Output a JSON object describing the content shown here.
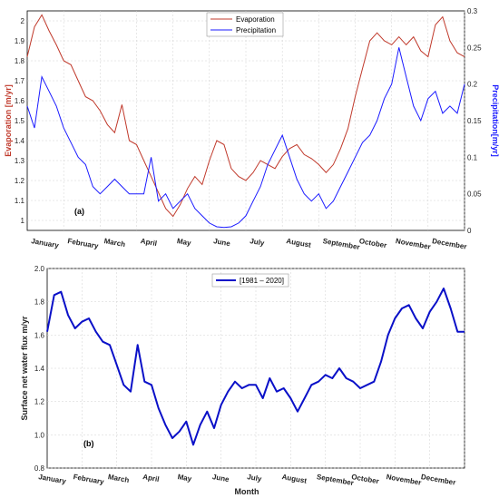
{
  "chart_data": [
    {
      "type": "line",
      "panel_label": "(a)",
      "months": [
        "January",
        "February",
        "March",
        "April",
        "May",
        "June",
        "July",
        "August",
        "September",
        "October",
        "November",
        "December"
      ],
      "y_left": {
        "label": "Evaporation [m/yr]",
        "ylim": [
          0.95,
          2.05
        ],
        "ticks": [
          "1",
          "1.1",
          "1.2",
          "1.3",
          "1.4",
          "1.5",
          "1.6",
          "1.7",
          "1.8",
          "1.9",
          "2"
        ],
        "color": "#c0392b"
      },
      "y_right": {
        "label": "Precipitation[m/yr]",
        "ylim": [
          0,
          0.3
        ],
        "ticks": [
          "0",
          "0.05",
          "0.1",
          "0.15",
          "0.2",
          "0.25",
          "0.3"
        ],
        "color": "#1a1aff"
      },
      "legend_position": "top-center",
      "grid": true,
      "series": [
        {
          "name": "Evaporation",
          "axis": "left",
          "color": "#c0392b",
          "x": [
            0,
            0.2,
            0.4,
            0.6,
            0.8,
            1,
            1.2,
            1.4,
            1.6,
            1.8,
            2,
            2.2,
            2.4,
            2.6,
            2.8,
            3,
            3.2,
            3.4,
            3.6,
            3.8,
            4,
            4.2,
            4.4,
            4.6,
            4.8,
            5,
            5.2,
            5.4,
            5.6,
            5.8,
            6,
            6.2,
            6.4,
            6.6,
            6.8,
            7,
            7.2,
            7.4,
            7.6,
            7.8,
            8,
            8.2,
            8.4,
            8.6,
            8.8,
            9,
            9.2,
            9.4,
            9.6,
            9.8,
            10,
            10.2,
            10.4,
            10.6,
            10.8,
            11,
            11.2,
            11.4,
            11.6,
            11.8,
            12
          ],
          "y": [
            1.82,
            1.97,
            2.03,
            1.95,
            1.88,
            1.8,
            1.78,
            1.7,
            1.62,
            1.6,
            1.55,
            1.48,
            1.44,
            1.58,
            1.4,
            1.38,
            1.3,
            1.22,
            1.14,
            1.06,
            1.02,
            1.08,
            1.16,
            1.22,
            1.18,
            1.3,
            1.4,
            1.38,
            1.26,
            1.22,
            1.2,
            1.24,
            1.3,
            1.28,
            1.26,
            1.32,
            1.36,
            1.38,
            1.33,
            1.31,
            1.28,
            1.24,
            1.28,
            1.36,
            1.46,
            1.62,
            1.76,
            1.9,
            1.94,
            1.9,
            1.88,
            1.92,
            1.88,
            1.92,
            1.85,
            1.82,
            1.98,
            2.02,
            1.9,
            1.84,
            1.82
          ]
        },
        {
          "name": "Precipitation",
          "axis": "right",
          "color": "#1a1aff",
          "x": [
            0,
            0.2,
            0.4,
            0.6,
            0.8,
            1,
            1.2,
            1.4,
            1.6,
            1.8,
            2,
            2.2,
            2.4,
            2.6,
            2.8,
            3,
            3.2,
            3.4,
            3.6,
            3.8,
            4,
            4.2,
            4.4,
            4.6,
            4.8,
            5,
            5.2,
            5.4,
            5.6,
            5.8,
            6,
            6.2,
            6.4,
            6.6,
            6.8,
            7,
            7.2,
            7.4,
            7.6,
            7.8,
            8,
            8.2,
            8.4,
            8.6,
            8.8,
            9,
            9.2,
            9.4,
            9.6,
            9.8,
            10,
            10.2,
            10.4,
            10.6,
            10.8,
            11,
            11.2,
            11.4,
            11.6,
            11.8,
            12
          ],
          "y": [
            0.17,
            0.14,
            0.21,
            0.19,
            0.17,
            0.14,
            0.12,
            0.1,
            0.09,
            0.06,
            0.05,
            0.06,
            0.07,
            0.06,
            0.05,
            0.05,
            0.05,
            0.1,
            0.04,
            0.05,
            0.03,
            0.04,
            0.05,
            0.03,
            0.02,
            0.01,
            0.005,
            0.004,
            0.005,
            0.01,
            0.02,
            0.04,
            0.06,
            0.09,
            0.11,
            0.13,
            0.1,
            0.07,
            0.05,
            0.04,
            0.05,
            0.03,
            0.04,
            0.06,
            0.08,
            0.1,
            0.12,
            0.13,
            0.15,
            0.18,
            0.2,
            0.25,
            0.21,
            0.17,
            0.15,
            0.18,
            0.19,
            0.16,
            0.17,
            0.16,
            0.2
          ]
        }
      ]
    },
    {
      "type": "line",
      "panel_label": "(b)",
      "months": [
        "January",
        "February",
        "March",
        "April",
        "May",
        "June",
        "July",
        "August",
        "September",
        "October",
        "November",
        "December"
      ],
      "xlabel": "Month",
      "ylabel": "Surface net water flux m/yr",
      "ylim": [
        0.8,
        2.0
      ],
      "yticks": [
        "0.8",
        "1.0",
        "1.2",
        "1.4",
        "1.6",
        "1.8",
        "2.0"
      ],
      "legend_position": "top-center",
      "grid": true,
      "series": [
        {
          "name": "[1981 – 2020]",
          "color": "#0a10c8",
          "x": [
            0,
            0.2,
            0.4,
            0.6,
            0.8,
            1,
            1.2,
            1.4,
            1.6,
            1.8,
            2,
            2.2,
            2.4,
            2.6,
            2.8,
            3,
            3.2,
            3.4,
            3.6,
            3.8,
            4,
            4.2,
            4.4,
            4.6,
            4.8,
            5,
            5.2,
            5.4,
            5.6,
            5.8,
            6,
            6.2,
            6.4,
            6.6,
            6.8,
            7,
            7.2,
            7.4,
            7.6,
            7.8,
            8,
            8.2,
            8.4,
            8.6,
            8.8,
            9,
            9.2,
            9.4,
            9.6,
            9.8,
            10,
            10.2,
            10.4,
            10.6,
            10.8,
            11,
            11.2,
            11.4,
            11.6,
            11.8,
            12
          ],
          "y": [
            1.62,
            1.84,
            1.86,
            1.72,
            1.64,
            1.68,
            1.7,
            1.62,
            1.56,
            1.54,
            1.42,
            1.3,
            1.26,
            1.54,
            1.32,
            1.3,
            1.16,
            1.06,
            0.98,
            1.02,
            1.08,
            0.94,
            1.06,
            1.14,
            1.04,
            1.18,
            1.26,
            1.32,
            1.28,
            1.3,
            1.3,
            1.22,
            1.34,
            1.26,
            1.28,
            1.22,
            1.14,
            1.22,
            1.3,
            1.32,
            1.36,
            1.34,
            1.4,
            1.34,
            1.32,
            1.28,
            1.3,
            1.32,
            1.44,
            1.6,
            1.7,
            1.76,
            1.78,
            1.7,
            1.64,
            1.74,
            1.8,
            1.88,
            1.76,
            1.62,
            1.62
          ]
        }
      ]
    }
  ]
}
